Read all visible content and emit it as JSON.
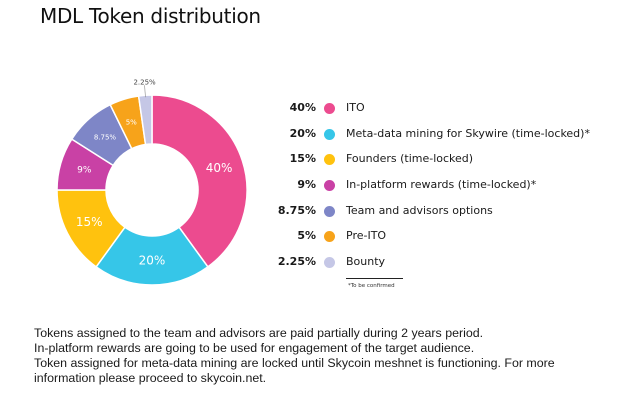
{
  "title": "MDL Token distribution",
  "chart_data": {
    "type": "pie",
    "title": "MDL Token distribution",
    "slices": [
      {
        "value_label": "40%",
        "value": 40,
        "label": "ITO",
        "color": "#ec4b8f"
      },
      {
        "value_label": "20%",
        "value": 20,
        "label": "Meta-data mining for Skywire (time-locked)*",
        "color": "#36c6e8"
      },
      {
        "value_label": "15%",
        "value": 15,
        "label": "Founders (time-locked)",
        "color": "#ffc20e"
      },
      {
        "value_label": "9%",
        "value": 9,
        "label": "In-platform rewards (time-locked)*",
        "color": "#c941a5"
      },
      {
        "value_label": "8.75%",
        "value": 8.75,
        "label": "Team and advisors options",
        "color": "#7e86c7"
      },
      {
        "value_label": "5%",
        "value": 5,
        "label": "Pre-ITO",
        "color": "#f7a31a"
      },
      {
        "value_label": "2.25%",
        "value": 2.25,
        "label": "Bounty",
        "color": "#c5c7e6"
      }
    ],
    "donut_labels": [
      "40%",
      "20%",
      "15%",
      "9%",
      "8.75%",
      "5%",
      "2.25%"
    ]
  },
  "footnote": "*To be confirmed",
  "notes": [
    "Tokens assigned to the team and advisors are paid partially during 2 years period.",
    "In-platform rewards are going to be used for engagement of the target audience.",
    "Token assigned for meta-data mining are locked until Skycoin meshnet is functioning. For more information please proceed to skycoin.net."
  ]
}
